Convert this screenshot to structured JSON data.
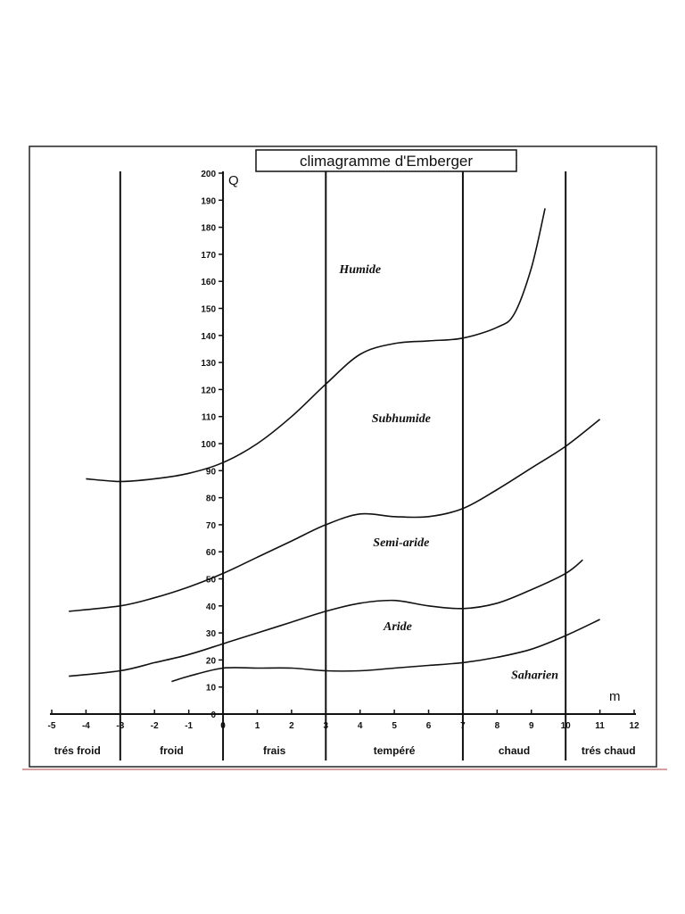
{
  "chart_data": {
    "type": "line",
    "title": "climagramme d'Emberger",
    "xlabel": "m",
    "ylabel": "Q",
    "xlim": [
      -5,
      12
    ],
    "ylim": [
      0,
      200
    ],
    "x_ticks": [
      -5,
      -4,
      -3,
      -2,
      -1,
      0,
      1,
      2,
      3,
      4,
      5,
      6,
      7,
      8,
      9,
      10,
      11,
      12
    ],
    "y_ticks": [
      0,
      10,
      20,
      30,
      40,
      50,
      60,
      70,
      80,
      90,
      100,
      110,
      120,
      130,
      140,
      150,
      160,
      170,
      180,
      190,
      200
    ],
    "vertical_lines_at": [
      -3,
      0,
      3,
      7,
      10
    ],
    "series": [
      {
        "points": [
          [
            -4,
            87
          ],
          [
            -3,
            86
          ],
          [
            -2,
            87
          ],
          [
            -1,
            89
          ],
          [
            0,
            93
          ],
          [
            1,
            100
          ],
          [
            2,
            110
          ],
          [
            3,
            122
          ],
          [
            4,
            133
          ],
          [
            5,
            137
          ],
          [
            6,
            138
          ],
          [
            7,
            139
          ],
          [
            8,
            143
          ],
          [
            8.5,
            148
          ],
          [
            9,
            165
          ],
          [
            9.4,
            187
          ]
        ]
      },
      {
        "points": [
          [
            -4.5,
            38
          ],
          [
            -3,
            40
          ],
          [
            -2,
            43
          ],
          [
            -1,
            47
          ],
          [
            0,
            52
          ],
          [
            1,
            58
          ],
          [
            2,
            64
          ],
          [
            3,
            70
          ],
          [
            4,
            74
          ],
          [
            5,
            73
          ],
          [
            6,
            73
          ],
          [
            7,
            76
          ],
          [
            8,
            83
          ],
          [
            9,
            91
          ],
          [
            10,
            99
          ],
          [
            11,
            109
          ]
        ]
      },
      {
        "points": [
          [
            -4.5,
            14
          ],
          [
            -3,
            16
          ],
          [
            -2,
            19
          ],
          [
            -1,
            22
          ],
          [
            0,
            26
          ],
          [
            1,
            30
          ],
          [
            2,
            34
          ],
          [
            3,
            38
          ],
          [
            4,
            41
          ],
          [
            5,
            42
          ],
          [
            6,
            40
          ],
          [
            7,
            39
          ],
          [
            8,
            41
          ],
          [
            9,
            46
          ],
          [
            10,
            52
          ],
          [
            10.5,
            57
          ]
        ]
      },
      {
        "points": [
          [
            -1.5,
            12
          ],
          [
            -1,
            14
          ],
          [
            0,
            17
          ],
          [
            1,
            17
          ],
          [
            2,
            17
          ],
          [
            3,
            16
          ],
          [
            4,
            16
          ],
          [
            5,
            17
          ],
          [
            6,
            18
          ],
          [
            7,
            19
          ],
          [
            8,
            21
          ],
          [
            9,
            24
          ],
          [
            10,
            29
          ],
          [
            11,
            35
          ]
        ]
      }
    ],
    "zone_labels": [
      {
        "text": "Humide",
        "x": 4,
        "y": 163
      },
      {
        "text": "Subhumide",
        "x": 5.2,
        "y": 108
      },
      {
        "text": "Semi-aride",
        "x": 5.2,
        "y": 62
      },
      {
        "text": "Aride",
        "x": 5.1,
        "y": 31
      },
      {
        "text": "Saharien",
        "x": 9.1,
        "y": 13
      }
    ],
    "band_labels": [
      {
        "text": "trés froid",
        "from": -5.5,
        "to": -3
      },
      {
        "text": "froid",
        "from": -3,
        "to": 0
      },
      {
        "text": "frais",
        "from": 0,
        "to": 3
      },
      {
        "text": "tempéré",
        "from": 3,
        "to": 7
      },
      {
        "text": "chaud",
        "from": 7,
        "to": 10
      },
      {
        "text": "trés chaud",
        "from": 10,
        "to": 12.5
      }
    ]
  }
}
